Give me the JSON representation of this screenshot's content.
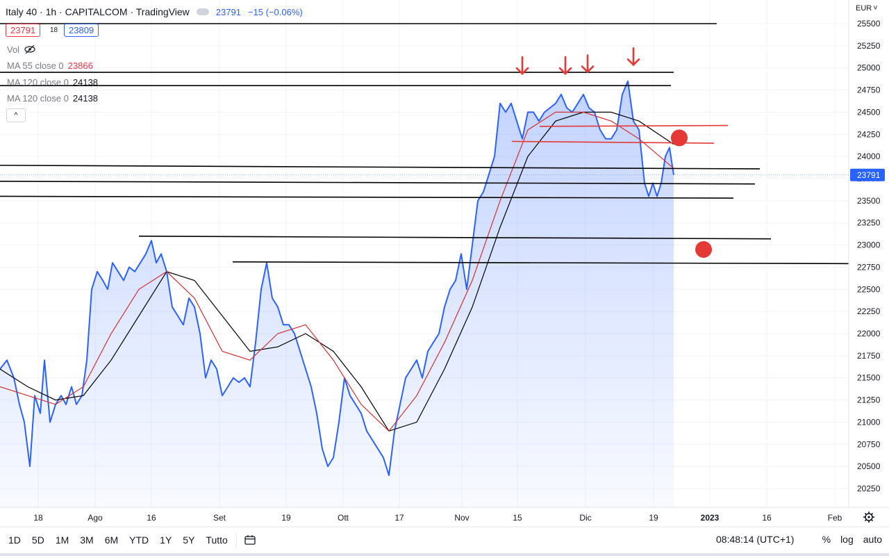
{
  "header": {
    "title": "Italy 40 · 1h · CAPITALCOM · TradingView",
    "last_price": "23791",
    "change": "−15 (−0.06%)"
  },
  "quote": {
    "sell": "23791",
    "spread": "18",
    "buy": "23809"
  },
  "legend": {
    "vol_label": "Vol",
    "ma1_label": "MA 55 close 0",
    "ma1_value": "23866",
    "ma2_label": "MA 120 close 0",
    "ma2_value": "24138",
    "ma3_label": "MA 120 close 0",
    "ma3_value": "24138",
    "collapse_glyph": "^"
  },
  "currency": "EUR",
  "price_tag": "23791",
  "time_display": "08:48:14 (UTC+1)",
  "ranges": [
    "1D",
    "5D",
    "1M",
    "3M",
    "6M",
    "YTD",
    "1Y",
    "5Y",
    "Tutto"
  ],
  "axis_buttons": [
    "%",
    "log",
    "auto"
  ],
  "colors": {
    "price_line": "#2962ff",
    "price_fill": "#2962ff",
    "ma_fast": "#d32f2f",
    "ma_slow": "#000000",
    "annotation": "#e53935"
  },
  "chart_data": {
    "type": "area",
    "y_ticks": [
      20250,
      20500,
      20750,
      21000,
      21250,
      21500,
      21750,
      22000,
      22250,
      22500,
      22750,
      23000,
      23250,
      23500,
      23750,
      24000,
      24250,
      24500,
      24750,
      25000,
      25250,
      25500
    ],
    "ylim": [
      20030,
      25700
    ],
    "x_labels": [
      {
        "t": 1,
        "label": "18"
      },
      {
        "t": 2,
        "label": "Ago"
      },
      {
        "t": 3,
        "label": "16"
      },
      {
        "t": 4,
        "label": "Set"
      },
      {
        "t": 5,
        "label": "19"
      },
      {
        "t": 6,
        "label": "Ott"
      },
      {
        "t": 7,
        "label": "17"
      },
      {
        "t": 8,
        "label": "Nov"
      },
      {
        "t": 9,
        "label": "15"
      },
      {
        "t": 10,
        "label": "Dic"
      },
      {
        "t": 11,
        "label": "19"
      },
      {
        "t": 12,
        "label": "2023"
      },
      {
        "t": 13,
        "label": "16"
      },
      {
        "t": 14,
        "label": "Feb"
      }
    ],
    "x_tick_pos": [
      55,
      137,
      218,
      316,
      412,
      494,
      575,
      665,
      745,
      843,
      941,
      1022,
      1104,
      1202
    ],
    "price_series": {
      "name": "Italy 40",
      "x": [
        0,
        10,
        20,
        28,
        35,
        43,
        50,
        58,
        64,
        72,
        80,
        88,
        95,
        103,
        110,
        118,
        125,
        132,
        140,
        148,
        155,
        162,
        170,
        178,
        186,
        194,
        202,
        210,
        218,
        225,
        232,
        240,
        248,
        256,
        264,
        272,
        280,
        288,
        296,
        304,
        312,
        320,
        328,
        336,
        344,
        352,
        360,
        368,
        376,
        384,
        392,
        400,
        408,
        416,
        424,
        432,
        440,
        448,
        456,
        464,
        472,
        480,
        488,
        496,
        504,
        512,
        520,
        528,
        536,
        544,
        552,
        560,
        568,
        576,
        584,
        592,
        600,
        608,
        616,
        624,
        632,
        640,
        648,
        656,
        664,
        672,
        680,
        688,
        696,
        704,
        712,
        720,
        728,
        736,
        744,
        752,
        760,
        768,
        776,
        784,
        792,
        800,
        808,
        816,
        824,
        832,
        840,
        848,
        856,
        864,
        872,
        880,
        888,
        896,
        904,
        912,
        920,
        928,
        934,
        940,
        946,
        952,
        958,
        964,
        970
      ],
      "y": [
        21600,
        21700,
        21500,
        21200,
        21000,
        20500,
        21300,
        21100,
        21700,
        21000,
        21200,
        21300,
        21200,
        21400,
        21200,
        21300,
        21700,
        22500,
        22700,
        22600,
        22500,
        22800,
        22700,
        22600,
        22750,
        22700,
        22800,
        22900,
        23050,
        22800,
        22900,
        22700,
        22300,
        22200,
        22100,
        22400,
        22300,
        22000,
        21500,
        21700,
        21600,
        21300,
        21400,
        21500,
        21450,
        21500,
        21400,
        21900,
        22500,
        22800,
        22400,
        22300,
        22100,
        22100,
        22000,
        21800,
        21600,
        21400,
        21100,
        20700,
        20500,
        20600,
        21000,
        21500,
        21300,
        21200,
        21100,
        20900,
        20800,
        20700,
        20600,
        20400,
        20900,
        21200,
        21500,
        21600,
        21700,
        21500,
        21800,
        21900,
        22000,
        22300,
        22500,
        22600,
        22900,
        22500,
        23000,
        23500,
        23600,
        23800,
        24000,
        24600,
        24500,
        24600,
        24400,
        24200,
        24500,
        24500,
        24400,
        24500,
        24550,
        24600,
        24700,
        24550,
        24500,
        24600,
        24700,
        24550,
        24500,
        24300,
        24200,
        24200,
        24300,
        24700,
        24850,
        24400,
        24300,
        23700,
        23550,
        23700,
        23550,
        23700,
        24000,
        24100,
        23791
      ]
    },
    "ma_fast": {
      "name": "MA 55 close 0",
      "x": [
        0,
        40,
        80,
        120,
        160,
        200,
        240,
        280,
        320,
        360,
        400,
        440,
        480,
        520,
        560,
        600,
        640,
        680,
        720,
        760,
        800,
        840,
        880,
        920,
        970
      ],
      "y": [
        21400,
        21300,
        21200,
        21400,
        22000,
        22500,
        22700,
        22400,
        21800,
        21700,
        22000,
        22100,
        21700,
        21200,
        20900,
        21300,
        21900,
        22600,
        23500,
        24300,
        24500,
        24500,
        24400,
        24200,
        23866
      ]
    },
    "ma_slow": {
      "name": "MA 120 close 0",
      "x": [
        0,
        40,
        80,
        120,
        160,
        200,
        240,
        280,
        320,
        360,
        400,
        440,
        480,
        520,
        560,
        600,
        640,
        680,
        720,
        760,
        800,
        840,
        880,
        920,
        970
      ],
      "y": [
        21600,
        21400,
        21250,
        21300,
        21700,
        22200,
        22700,
        22600,
        22200,
        21800,
        21850,
        22000,
        21800,
        21400,
        20900,
        21000,
        21600,
        22300,
        23200,
        24000,
        24400,
        24500,
        24500,
        24400,
        24138
      ]
    },
    "h_lines": [
      {
        "x1": 0,
        "y1": 25500,
        "x2": 1032,
        "y2": 25500
      },
      {
        "x1": 0,
        "y1": 24950,
        "x2": 970,
        "y2": 24950
      },
      {
        "x1": 0,
        "y1": 24800,
        "x2": 966,
        "y2": 24800
      },
      {
        "x1": 0,
        "y1": 23900,
        "x2": 1094,
        "y2": 23860
      },
      {
        "x1": 0,
        "y1": 23720,
        "x2": 1087,
        "y2": 23690
      },
      {
        "x1": 0,
        "y1": 23550,
        "x2": 1056,
        "y2": 23530
      },
      {
        "x1": 200,
        "y1": 23100,
        "x2": 1110,
        "y2": 23070
      },
      {
        "x1": 335,
        "y1": 22810,
        "x2": 1222,
        "y2": 22790
      }
    ],
    "red_lines": [
      {
        "x1": 777,
        "y1": 24340,
        "x2": 1048,
        "y2": 24350
      },
      {
        "x1": 737,
        "y1": 24170,
        "x2": 1028,
        "y2": 24150
      }
    ],
    "arrows": [
      {
        "x": 752,
        "y": 24950
      },
      {
        "x": 814,
        "y": 24950
      },
      {
        "x": 846,
        "y": 24970
      },
      {
        "x": 912,
        "y": 25050
      }
    ],
    "dots": [
      {
        "x": 978,
        "y": 24210
      },
      {
        "x": 1013,
        "y": 22950
      }
    ]
  }
}
